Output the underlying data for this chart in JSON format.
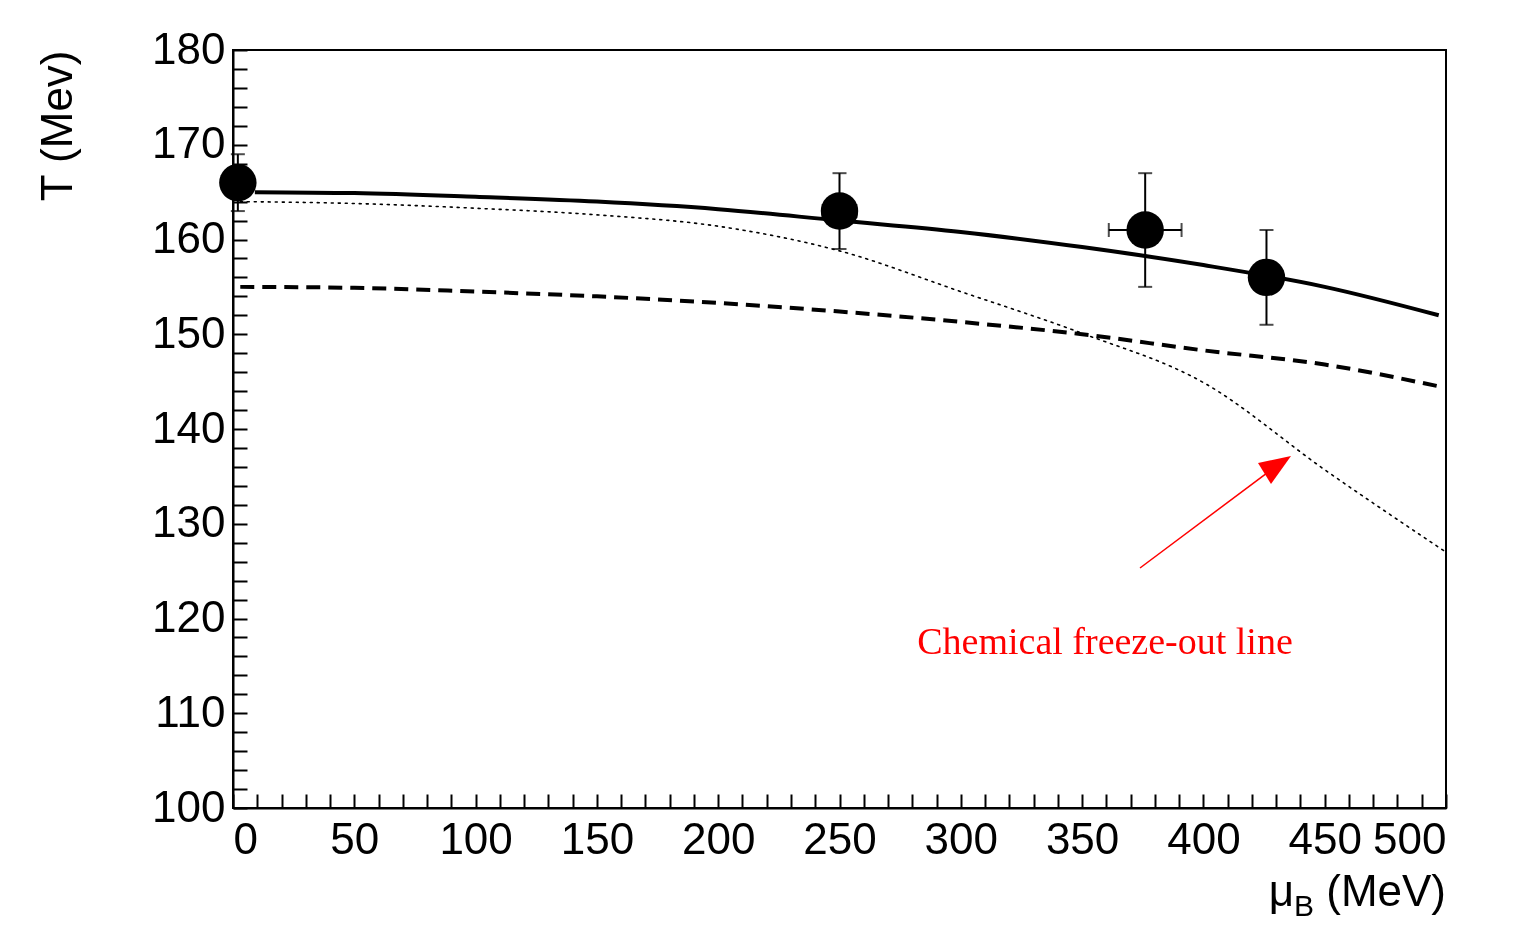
{
  "chart_data": {
    "type": "line",
    "xlabel": "μ$_{B}$ (MeV)",
    "ylabel": "T (Mev)",
    "annotations": [
      "Chemical freeze-out line"
    ],
    "xlim": [
      0,
      500
    ],
    "ylim": [
      100,
      180
    ],
    "xticks": [
      0,
      {
        "value": 10,
        "label": null
      },
      {
        "value": 20,
        "label": null
      },
      {
        "value": 30,
        "label": null
      },
      {
        "value": 40,
        "label": null
      },
      50,
      {
        "value": 60,
        "label": null
      },
      {
        "value": 70,
        "label": null
      },
      {
        "value": 80,
        "label": null
      },
      {
        "value": 90,
        "label": null
      },
      100,
      {
        "value": 110,
        "label": null
      },
      {
        "value": 120,
        "label": null
      },
      {
        "value": 130,
        "label": null
      },
      {
        "value": 140,
        "label": null
      },
      150,
      {
        "value": 160,
        "label": null
      },
      {
        "value": 170,
        "label": null
      },
      {
        "value": 180,
        "label": null
      },
      {
        "value": 190,
        "label": null
      },
      200,
      {
        "value": 210,
        "label": null
      },
      {
        "value": 220,
        "label": null
      },
      {
        "value": 230,
        "label": null
      },
      {
        "value": 240,
        "label": null
      },
      250,
      {
        "value": 260,
        "label": null
      },
      {
        "value": 270,
        "label": null
      },
      {
        "value": 280,
        "label": null
      },
      {
        "value": 290,
        "label": null
      },
      300,
      {
        "value": 310,
        "label": null
      },
      {
        "value": 320,
        "label": null
      },
      {
        "value": 330,
        "label": null
      },
      {
        "value": 340,
        "label": null
      },
      350,
      {
        "value": 360,
        "label": null
      },
      {
        "value": 370,
        "label": null
      },
      {
        "value": 380,
        "label": null
      },
      {
        "value": 390,
        "label": null
      },
      400,
      {
        "value": 410,
        "label": null
      },
      {
        "value": 420,
        "label": null
      },
      {
        "value": 430,
        "label": null
      },
      {
        "value": 440,
        "label": null
      },
      450,
      {
        "value": 460,
        "label": null
      },
      {
        "value": 470,
        "label": null
      },
      {
        "value": 480,
        "label": null
      },
      {
        "value": 490,
        "label": null
      },
      500
    ],
    "yticks": [
      100,
      {
        "value": 102,
        "label": null
      },
      {
        "value": 104,
        "label": null
      },
      {
        "value": 106,
        "label": null
      },
      {
        "value": 108,
        "label": null
      },
      110,
      {
        "value": 112,
        "label": null
      },
      {
        "value": 114,
        "label": null
      },
      {
        "value": 116,
        "label": null
      },
      {
        "value": 118,
        "label": null
      },
      120,
      {
        "value": 122,
        "label": null
      },
      {
        "value": 124,
        "label": null
      },
      {
        "value": 126,
        "label": null
      },
      {
        "value": 128,
        "label": null
      },
      130,
      {
        "value": 132,
        "label": null
      },
      {
        "value": 134,
        "label": null
      },
      {
        "value": 136,
        "label": null
      },
      {
        "value": 138,
        "label": null
      },
      140,
      {
        "value": 142,
        "label": null
      },
      {
        "value": 144,
        "label": null
      },
      {
        "value": 146,
        "label": null
      },
      {
        "value": 148,
        "label": null
      },
      150,
      {
        "value": 152,
        "label": null
      },
      {
        "value": 154,
        "label": null
      },
      {
        "value": 156,
        "label": null
      },
      {
        "value": 158,
        "label": null
      },
      160,
      {
        "value": 162,
        "label": null
      },
      {
        "value": 164,
        "label": null
      },
      {
        "value": 166,
        "label": null
      },
      {
        "value": 168,
        "label": null
      },
      170,
      {
        "value": 172,
        "label": null
      },
      {
        "value": 174,
        "label": null
      },
      {
        "value": 176,
        "label": null
      },
      {
        "value": 178,
        "label": null
      },
      180
    ],
    "grid": false,
    "series": [
      {
        "line_style": "solid",
        "color": "#000000",
        "x": [
          9,
          50,
          100,
          150,
          200,
          250,
          300,
          350,
          400,
          450,
          497
        ],
        "values": [
          165,
          164.9,
          164.5,
          164,
          163.2,
          162,
          160.8,
          159.2,
          157.3,
          155,
          152
        ]
      },
      {
        "line_style": "dashed",
        "color": "#000000",
        "x": [
          3,
          50,
          100,
          150,
          200,
          250,
          300,
          350,
          400,
          450,
          497
        ],
        "values": [
          155,
          154.9,
          154.5,
          154,
          153.3,
          152.4,
          151.3,
          150,
          148.3,
          146.8,
          144.5
        ]
      },
      {
        "line_style": "dotted",
        "color": "#000000",
        "x": [
          3,
          50,
          100,
          150,
          200,
          250,
          300,
          350,
          400,
          450,
          500
        ],
        "values": [
          164,
          163.8,
          163.3,
          162.6,
          161.4,
          158.8,
          154.5,
          150.1,
          144.9,
          135.7,
          127
        ]
      },
      {
        "type": "scatter",
        "marker": "circle",
        "color": "#000000",
        "x": [
          2,
          250,
          376,
          426
        ],
        "values": [
          166,
          163,
          161,
          156
        ],
        "errors": [
          3,
          4,
          6,
          5
        ],
        "xerrors": [
          null,
          7,
          15,
          null
        ]
      }
    ]
  }
}
